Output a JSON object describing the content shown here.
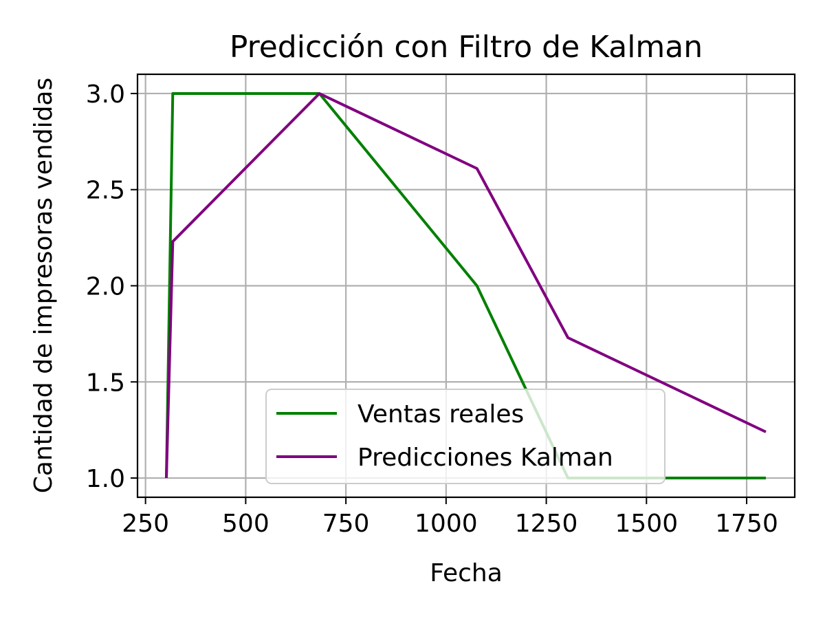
{
  "chart_data": {
    "type": "line",
    "title": "Predicción con Filtro de Kalman",
    "xlabel": "Fecha",
    "ylabel": "Cantidad de impresoras vendidas",
    "xlim": [
      230,
      1870
    ],
    "ylim": [
      0.9,
      3.1
    ],
    "xticks": [
      250,
      500,
      750,
      1000,
      1250,
      1500,
      1750
    ],
    "xtick_labels": [
      "250",
      "500",
      "750",
      "1000",
      "1250",
      "1500",
      "1750"
    ],
    "yticks": [
      1.0,
      1.5,
      2.0,
      2.5,
      3.0
    ],
    "ytick_labels": [
      "1.0",
      "1.5",
      "2.0",
      "2.5",
      "3.0"
    ],
    "grid": true,
    "legend_position": "lower-center",
    "series": [
      {
        "name": "Ventas reales",
        "color": "#008000",
        "x": [
          302,
          318,
          684,
          1077,
          1304,
          1798
        ],
        "y": [
          1.0,
          3.0,
          3.0,
          2.0,
          1.0,
          1.0
        ]
      },
      {
        "name": "Predicciones Kalman",
        "color": "#800080",
        "x": [
          302,
          318,
          684,
          1077,
          1304,
          1798
        ],
        "y": [
          1.0,
          2.23,
          3.0,
          2.61,
          1.73,
          1.24
        ]
      }
    ]
  }
}
